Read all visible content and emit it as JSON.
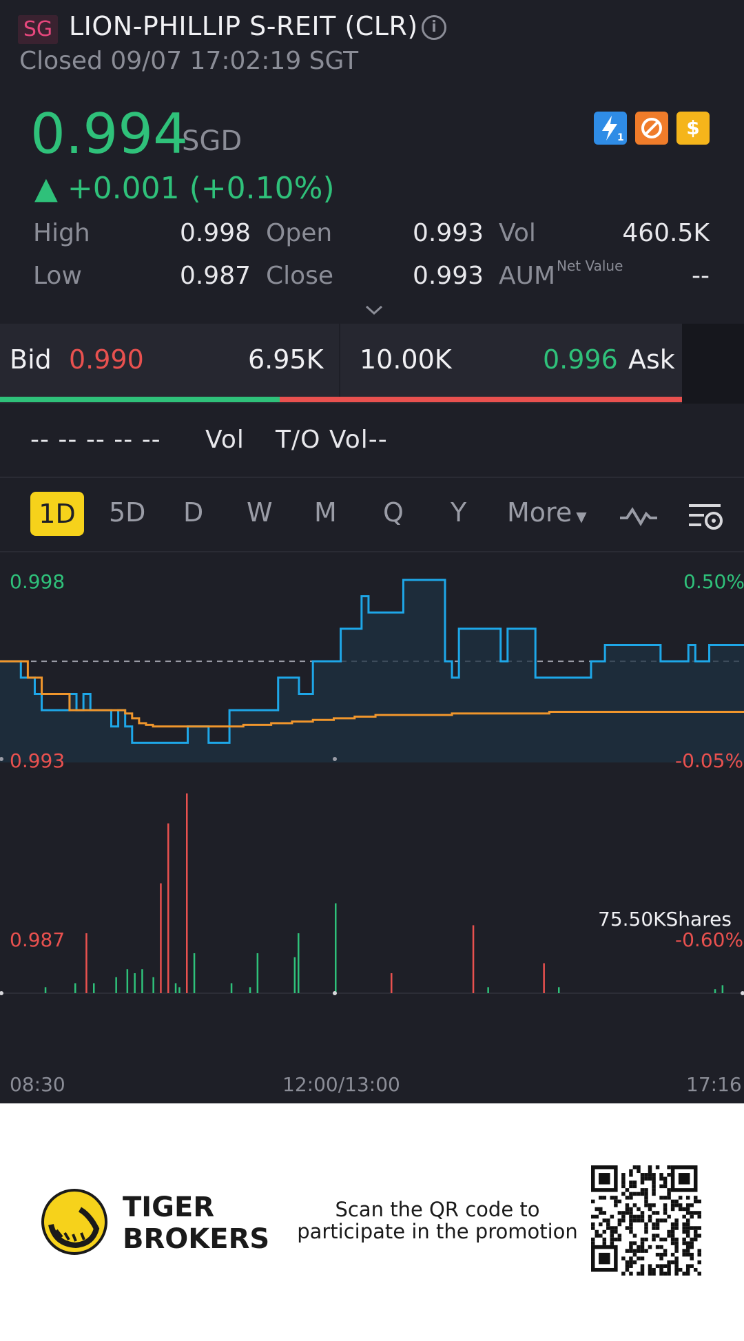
{
  "header": {
    "market_badge": "SG",
    "title": "LION-PHILLIP S-REIT (CLR)",
    "status": "Closed 09/07 17:02:19 SGT"
  },
  "quote": {
    "price": "0.994",
    "currency": "SGD",
    "change": "▲ +0.001 (+0.10%)",
    "badges": [
      "lightning-level1-icon",
      "no-trading-icon",
      "dollar-icon"
    ]
  },
  "stats": {
    "high_label": "High",
    "high": "0.998",
    "low_label": "Low",
    "low": "0.987",
    "open_label": "Open",
    "open": "0.993",
    "close_label": "Close",
    "close": "0.993",
    "vol_label": "Vol",
    "vol": "460.5K",
    "aum_label": "AUM",
    "aum_sup": "Net Value",
    "aum": "--"
  },
  "bidask": {
    "bid_label": "Bid",
    "bid_price": "0.990",
    "bid_size": "6.95K",
    "ask_size": "10.00K",
    "ask_price": "0.996",
    "ask_label": "Ask",
    "bid_ratio": 0.41
  },
  "vol_row": {
    "dashes": "-- -- -- -- --",
    "vol_label": "Vol",
    "to_vol": "T/O Vol--"
  },
  "tabs": {
    "items": [
      "1D",
      "5D",
      "D",
      "W",
      "M",
      "Q",
      "Y"
    ],
    "active": "1D",
    "more": "More"
  },
  "chart_data": {
    "type": "line",
    "y_left_ticks": [
      "0.998",
      "0.993",
      "0.987"
    ],
    "y_right_ticks": [
      "0.50%",
      "-0.05%",
      "-0.60%"
    ],
    "x_ticks": [
      "08:30",
      "12:00/13:00",
      "17:16"
    ],
    "prev_close": 0.993,
    "ylim": [
      0.987,
      0.998
    ],
    "volume_label": "75.50KShares",
    "series": [
      {
        "color": "#1ea7e8",
        "values": [
          0.993,
          0.993,
          0.993,
          0.992,
          0.992,
          0.991,
          0.99,
          0.99,
          0.99,
          0.99,
          0.991,
          0.99,
          0.991,
          0.99,
          0.99,
          0.99,
          0.989,
          0.99,
          0.989,
          0.988,
          0.988,
          0.988,
          0.988,
          0.988,
          0.988,
          0.988,
          0.988,
          0.989,
          0.989,
          0.989,
          0.988,
          0.988,
          0.988,
          0.99,
          0.99,
          0.99,
          0.99,
          0.99,
          0.99,
          0.99,
          0.992,
          0.992,
          0.992,
          0.991,
          0.991,
          0.993,
          0.993,
          0.993,
          0.993,
          0.995,
          0.995,
          0.995,
          0.997,
          0.996,
          0.996,
          0.996,
          0.996,
          0.996,
          0.998,
          0.998,
          0.998,
          0.998,
          0.998,
          0.998,
          0.993,
          0.992,
          0.995,
          0.995,
          0.995,
          0.995,
          0.995,
          0.995,
          0.993,
          0.995,
          0.995,
          0.995,
          0.995,
          0.992,
          0.992,
          0.992,
          0.992,
          0.992,
          0.992,
          0.992,
          0.992,
          0.993,
          0.993,
          0.994,
          0.994,
          0.994,
          0.994,
          0.994,
          0.994,
          0.994,
          0.994,
          0.993,
          0.993,
          0.993,
          0.993,
          0.994,
          0.993,
          0.993,
          0.994,
          0.994,
          0.994,
          0.994,
          0.994,
          0.994
        ]
      },
      {
        "color": "#f0962c",
        "values": [
          0.993,
          0.993,
          0.993,
          0.993,
          0.992,
          0.992,
          0.991,
          0.991,
          0.991,
          0.991,
          0.99,
          0.99,
          0.99,
          0.99,
          0.99,
          0.99,
          0.99,
          0.99,
          0.9898,
          0.9895,
          0.9892,
          0.9891,
          0.989,
          0.989,
          0.989,
          0.989,
          0.989,
          0.989,
          0.989,
          0.989,
          0.989,
          0.989,
          0.989,
          0.989,
          0.989,
          0.9891,
          0.9891,
          0.9891,
          0.9891,
          0.9892,
          0.9892,
          0.9892,
          0.9893,
          0.9893,
          0.9893,
          0.9894,
          0.9894,
          0.9894,
          0.9895,
          0.9895,
          0.9895,
          0.9896,
          0.9896,
          0.9896,
          0.9897,
          0.9897,
          0.9897,
          0.9897,
          0.9897,
          0.9897,
          0.9897,
          0.9897,
          0.9897,
          0.9897,
          0.9897,
          0.9898,
          0.9898,
          0.9898,
          0.9898,
          0.9898,
          0.9898,
          0.9898,
          0.9898,
          0.9898,
          0.9898,
          0.9898,
          0.9898,
          0.9898,
          0.9898,
          0.9899,
          0.9899,
          0.9899,
          0.9899,
          0.9899,
          0.9899,
          0.9899,
          0.9899,
          0.9899,
          0.9899,
          0.9899,
          0.9899,
          0.9899,
          0.9899,
          0.9899,
          0.9899,
          0.9899,
          0.9899,
          0.9899,
          0.9899,
          0.9899,
          0.9899,
          0.9899,
          0.9899,
          0.9899,
          0.9899,
          0.9899,
          0.9899,
          0.9899
        ]
      }
    ],
    "volume_bars": [
      {
        "x": 0.06,
        "v": 0.03,
        "c": "#2fc17a"
      },
      {
        "x": 0.1,
        "v": 0.05,
        "c": "#2fc17a"
      },
      {
        "x": 0.115,
        "v": 0.3,
        "c": "#e9514f"
      },
      {
        "x": 0.125,
        "v": 0.05,
        "c": "#2fc17a"
      },
      {
        "x": 0.155,
        "v": 0.08,
        "c": "#2fc17a"
      },
      {
        "x": 0.17,
        "v": 0.12,
        "c": "#2fc17a"
      },
      {
        "x": 0.18,
        "v": 0.1,
        "c": "#2fc17a"
      },
      {
        "x": 0.19,
        "v": 0.12,
        "c": "#2fc17a"
      },
      {
        "x": 0.205,
        "v": 0.08,
        "c": "#2fc17a"
      },
      {
        "x": 0.215,
        "v": 0.55,
        "c": "#e9514f"
      },
      {
        "x": 0.225,
        "v": 0.85,
        "c": "#e9514f"
      },
      {
        "x": 0.235,
        "v": 0.05,
        "c": "#2fc17a"
      },
      {
        "x": 0.24,
        "v": 0.03,
        "c": "#2fc17a"
      },
      {
        "x": 0.25,
        "v": 1.0,
        "c": "#e9514f"
      },
      {
        "x": 0.26,
        "v": 0.2,
        "c": "#2fc17a"
      },
      {
        "x": 0.31,
        "v": 0.05,
        "c": "#2fc17a"
      },
      {
        "x": 0.335,
        "v": 0.03,
        "c": "#2fc17a"
      },
      {
        "x": 0.345,
        "v": 0.2,
        "c": "#2fc17a"
      },
      {
        "x": 0.395,
        "v": 0.18,
        "c": "#2fc17a"
      },
      {
        "x": 0.4,
        "v": 0.3,
        "c": "#2fc17a"
      },
      {
        "x": 0.45,
        "v": 0.45,
        "c": "#2fc17a"
      },
      {
        "x": 0.525,
        "v": 0.1,
        "c": "#e9514f"
      },
      {
        "x": 0.635,
        "v": 0.34,
        "c": "#e9514f"
      },
      {
        "x": 0.655,
        "v": 0.03,
        "c": "#2fc17a"
      },
      {
        "x": 0.73,
        "v": 0.15,
        "c": "#e9514f"
      },
      {
        "x": 0.75,
        "v": 0.03,
        "c": "#2fc17a"
      },
      {
        "x": 0.96,
        "v": 0.02,
        "c": "#2fc17a"
      },
      {
        "x": 0.97,
        "v": 0.04,
        "c": "#2fc17a"
      }
    ]
  },
  "footer": {
    "brand_line1": "TIGER",
    "brand_line2": "BROKERS",
    "promo": "Scan the QR code to participate in the promotion"
  }
}
